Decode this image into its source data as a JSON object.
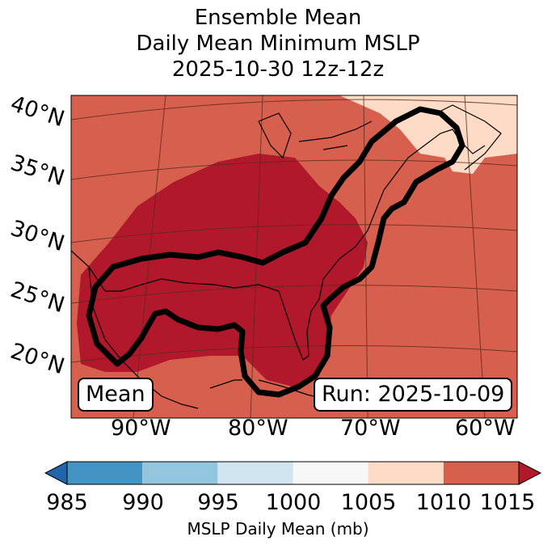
{
  "title": {
    "line1": "Ensemble Mean",
    "line2": "Daily Mean Minimum MSLP",
    "line3": "2025-10-30 12z-12z"
  },
  "latitude_labels": [
    "40°N",
    "35°N",
    "30°N",
    "25°N",
    "20°N"
  ],
  "longitude_labels": [
    "90°W",
    "80°W",
    "70°W",
    "60°W"
  ],
  "mean_box": "Mean",
  "run_box": "Run: 2025-10-09",
  "colorbar": {
    "ticks": [
      "985",
      "990",
      "995",
      "1000",
      "1005",
      "1010",
      "1015"
    ],
    "label": "MSLP Daily Mean (mb)",
    "colors": [
      "#2166ac",
      "#4393c3",
      "#92c5de",
      "#d1e5f0",
      "#f7f7f7",
      "#fddbc7",
      "#d6604d",
      "#b2182b"
    ]
  },
  "map_colors": {
    "bin_1010_1015": "#d6604d",
    "bin_1005_1010": "#fddbc7",
    "bin_above_1015": "#b2182b"
  }
}
